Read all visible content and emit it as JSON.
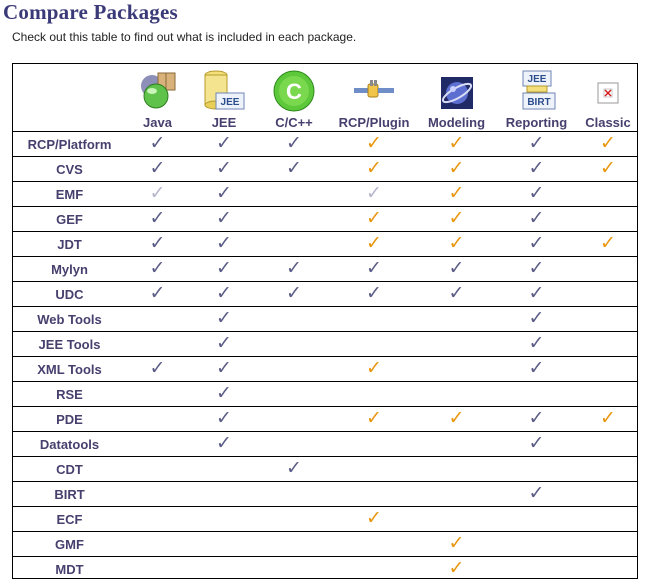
{
  "header": {
    "title": "Compare Packages",
    "subtitle": "Check out this table to find out what is included in each package."
  },
  "packages": [
    {
      "label": "Java",
      "icon": "java-package-icon"
    },
    {
      "label": "JEE",
      "icon": "jee-package-icon"
    },
    {
      "label": "C/C++",
      "icon": "cpp-package-icon"
    },
    {
      "label": "RCP/Plugin",
      "icon": "rcp-plugin-package-icon"
    },
    {
      "label": "Modeling",
      "icon": "modeling-package-icon"
    },
    {
      "label": "Reporting",
      "icon": "reporting-package-icon"
    },
    {
      "label": "Classic",
      "icon": "classic-package-icon"
    }
  ],
  "colors": {
    "blue_check": "#5a5c86",
    "orange_check": "#e9960f",
    "light_check": "#b6b7cc",
    "label_color": "#47406e"
  },
  "legend_note": "cell codes: b = blue check, o = orange check, l = light check, empty = not included",
  "features": [
    {
      "name": "RCP/Platform",
      "cells": [
        "b",
        "b",
        "b",
        "o",
        "o",
        "b",
        "o"
      ]
    },
    {
      "name": "CVS",
      "cells": [
        "b",
        "b",
        "b",
        "o",
        "o",
        "b",
        "o"
      ]
    },
    {
      "name": "EMF",
      "cells": [
        "l",
        "b",
        "",
        "l",
        "o",
        "b",
        ""
      ]
    },
    {
      "name": "GEF",
      "cells": [
        "b",
        "b",
        "",
        "o",
        "o",
        "b",
        ""
      ]
    },
    {
      "name": "JDT",
      "cells": [
        "b",
        "b",
        "",
        "o",
        "o",
        "b",
        "o"
      ]
    },
    {
      "name": "Mylyn",
      "cells": [
        "b",
        "b",
        "b",
        "b",
        "b",
        "b",
        ""
      ]
    },
    {
      "name": "UDC",
      "cells": [
        "b",
        "b",
        "b",
        "b",
        "b",
        "b",
        ""
      ]
    },
    {
      "name": "Web Tools",
      "cells": [
        "",
        "b",
        "",
        "",
        "",
        "b",
        ""
      ]
    },
    {
      "name": "JEE Tools",
      "cells": [
        "",
        "b",
        "",
        "",
        "",
        "b",
        ""
      ]
    },
    {
      "name": "XML Tools",
      "cells": [
        "b",
        "b",
        "",
        "o",
        "",
        "b",
        ""
      ]
    },
    {
      "name": "RSE",
      "cells": [
        "",
        "b",
        "",
        "",
        "",
        "",
        ""
      ]
    },
    {
      "name": "PDE",
      "cells": [
        "",
        "b",
        "",
        "o",
        "o",
        "b",
        "o"
      ]
    },
    {
      "name": "Datatools",
      "cells": [
        "",
        "b",
        "",
        "",
        "",
        "b",
        ""
      ]
    },
    {
      "name": "CDT",
      "cells": [
        "",
        "",
        "b",
        "",
        "",
        "",
        ""
      ]
    },
    {
      "name": "BIRT",
      "cells": [
        "",
        "",
        "",
        "",
        "",
        "b",
        ""
      ]
    },
    {
      "name": "ECF",
      "cells": [
        "",
        "",
        "",
        "o",
        "",
        "",
        ""
      ]
    },
    {
      "name": "GMF",
      "cells": [
        "",
        "",
        "",
        "",
        "o",
        "",
        ""
      ]
    },
    {
      "name": "MDT",
      "cells": [
        "",
        "",
        "",
        "",
        "o",
        "",
        ""
      ]
    }
  ]
}
